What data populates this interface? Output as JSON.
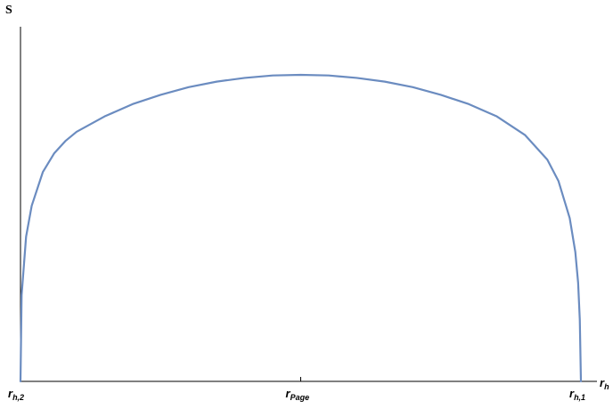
{
  "chart_data": {
    "type": "line",
    "ylabel": "S",
    "xlabel": {
      "main": "r",
      "sub": "h"
    },
    "x_ticks": [
      {
        "x": 0.0,
        "main": "r",
        "sub": "h,2"
      },
      {
        "x": 0.5,
        "main": "r",
        "sub": "Page"
      },
      {
        "x": 1.0,
        "main": "r",
        "sub": "h,1"
      }
    ],
    "xlim": [
      0,
      1
    ],
    "ylim": [
      0,
      1.05
    ],
    "grid": false,
    "series_color": "#6b8cc0",
    "series": [
      {
        "x": [
          0.0,
          0.002,
          0.01,
          0.02,
          0.04,
          0.06,
          0.08,
          0.1,
          0.15,
          0.2,
          0.25,
          0.3,
          0.35,
          0.4,
          0.45,
          0.5,
          0.55,
          0.6,
          0.65,
          0.7,
          0.75,
          0.8,
          0.85,
          0.9,
          0.94,
          0.96,
          0.98,
          0.99,
          0.995,
          0.998,
          1.0
        ],
        "y": [
          0.0,
          0.28,
          0.47,
          0.57,
          0.68,
          0.74,
          0.78,
          0.81,
          0.86,
          0.9,
          0.93,
          0.955,
          0.973,
          0.985,
          0.993,
          0.995,
          0.993,
          0.985,
          0.973,
          0.955,
          0.93,
          0.9,
          0.86,
          0.8,
          0.72,
          0.65,
          0.53,
          0.42,
          0.32,
          0.2,
          0.0
        ]
      }
    ]
  }
}
